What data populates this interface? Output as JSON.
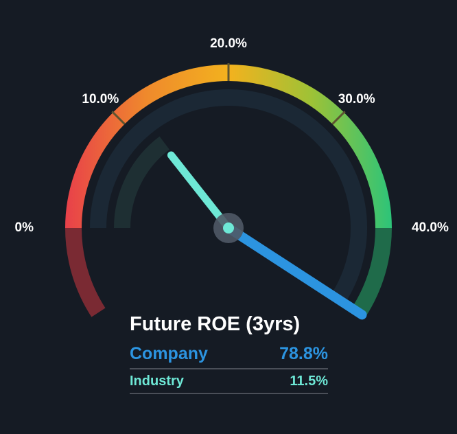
{
  "chart_data": {
    "type": "gauge",
    "title": "Future ROE (3yrs)",
    "unit": "%",
    "range": [
      0,
      40
    ],
    "ticks": [
      {
        "value": 0,
        "label": "0%"
      },
      {
        "value": 10,
        "label": "10.0%"
      },
      {
        "value": 20,
        "label": "20.0%"
      },
      {
        "value": 30,
        "label": "30.0%"
      },
      {
        "value": 40,
        "label": "40.0%"
      }
    ],
    "series": [
      {
        "name": "Company",
        "value": 78.8,
        "label": "78.8%",
        "color": "#2c94e0"
      },
      {
        "name": "Industry",
        "value": 11.5,
        "label": "11.5%",
        "color": "#6ee8d6"
      }
    ]
  },
  "colors": {
    "background": "#151b24",
    "scale_start": "#e8404a",
    "scale_quarter": "#ef8a2c",
    "scale_mid": "#f3b21e",
    "scale_three_quarter": "#9ec236",
    "scale_end": "#2bc47a",
    "below_zone": "#7a2a33",
    "above_zone": "#1f6b4a",
    "inner_track": "#1b2835",
    "hub": "#4f5966"
  }
}
